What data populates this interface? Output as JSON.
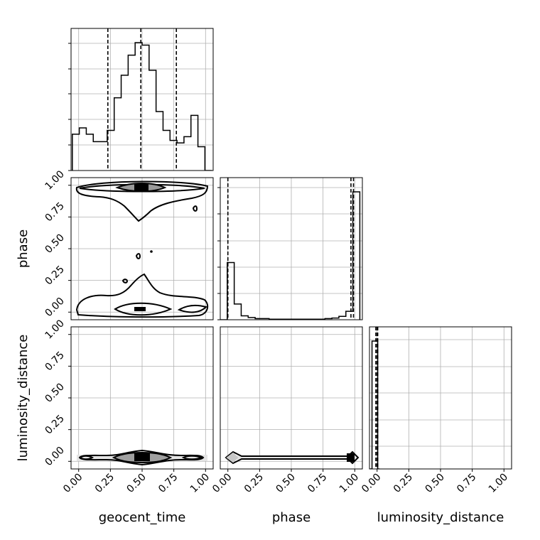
{
  "chart_data": {
    "type": "corner",
    "parameters": [
      "geocent_time",
      "phase",
      "luminosity_distance"
    ],
    "tick_values": [
      0.0,
      0.25,
      0.5,
      0.75,
      1.0
    ],
    "tick_labels": [
      "0.00",
      "0.25",
      "0.50",
      "0.75",
      "1.00"
    ],
    "axis_ranges": {
      "geocent_time": [
        -0.06,
        1.06
      ],
      "phase": [
        -0.06,
        1.06
      ],
      "luminosity_distance": [
        -0.06,
        1.06
      ]
    },
    "grid": true,
    "histograms": [
      {
        "parameter": "geocent_time",
        "bin_edges": [
          -0.05,
          0.005,
          0.06,
          0.115,
          0.17,
          0.225,
          0.28,
          0.335,
          0.39,
          0.445,
          0.5,
          0.555,
          0.61,
          0.665,
          0.72,
          0.775,
          0.83,
          0.885,
          0.94,
          0.995,
          1.05
        ],
        "counts": [
          29,
          34,
          29,
          23,
          23,
          32,
          58,
          76,
          92,
          102,
          100,
          80,
          47,
          32,
          24,
          22,
          27,
          44,
          19,
          0
        ],
        "quantiles": [
          0.23,
          0.49,
          0.77
        ]
      },
      {
        "parameter": "phase",
        "bin_edges": [
          -0.06,
          -0.005,
          0.05,
          0.105,
          0.16,
          0.215,
          0.27,
          0.325,
          0.38,
          0.435,
          0.49,
          0.545,
          0.6,
          0.655,
          0.71,
          0.765,
          0.82,
          0.875,
          0.93,
          0.985,
          1.04
        ],
        "counts": [
          0,
          102,
          28,
          7,
          4,
          2,
          2,
          1,
          1,
          1,
          1,
          1,
          1,
          1,
          1,
          2,
          3,
          6,
          15,
          228
        ],
        "quantiles": [
          0.0,
          0.97,
          0.99
        ]
      },
      {
        "parameter": "luminosity_distance",
        "bin_edges": [
          -0.055,
          -0.04,
          -0.025,
          -0.01,
          0.005,
          0.02
        ],
        "counts": [
          0,
          100,
          100,
          100,
          0
        ],
        "quantiles": [
          -0.01,
          0.0,
          0.005
        ]
      }
    ]
  }
}
